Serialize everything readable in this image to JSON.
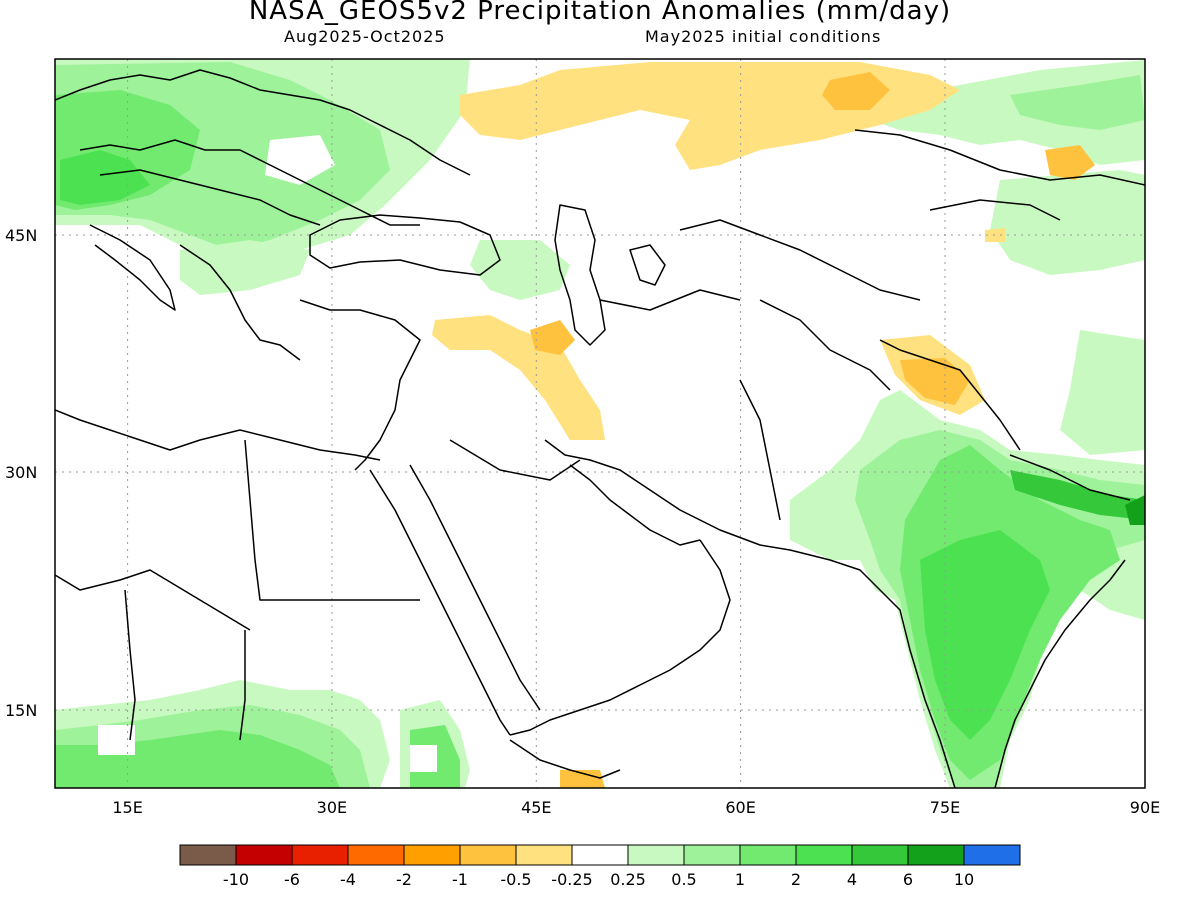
{
  "title": "NASA_GEOS5v2 Precipitation Anomalies (mm/day)",
  "subtitle_left": "Aug2025-Oct2025",
  "subtitle_right": "May2025 initial conditions",
  "map": {
    "lon_range": [
      10,
      90
    ],
    "lat_range": [
      10,
      55
    ],
    "lon_ticks": [
      {
        "value": 15,
        "label": "15E"
      },
      {
        "value": 30,
        "label": "30E"
      },
      {
        "value": 45,
        "label": "45E"
      },
      {
        "value": 60,
        "label": "60E"
      },
      {
        "value": 75,
        "label": "75E"
      },
      {
        "value": 90,
        "label": "90E"
      }
    ],
    "lat_ticks": [
      {
        "value": 45,
        "label": "45N"
      },
      {
        "value": 30,
        "label": "30N"
      },
      {
        "value": 15,
        "label": "15N"
      }
    ],
    "grid": "dotted"
  },
  "legend": {
    "colors": [
      "#7a5a48",
      "#c40000",
      "#e82000",
      "#ff6a00",
      "#ff9f00",
      "#ffc23f",
      "#ffe27f",
      "#ffffff",
      "#c8f9c0",
      "#9ef29a",
      "#72ea70",
      "#4ce150",
      "#35c83b",
      "#13a11b",
      "#1f6fe8"
    ],
    "labels": [
      "-10",
      "-6",
      "-4",
      "-2",
      "-1",
      "-0.5",
      "-0.25",
      "0.25",
      "0.5",
      "1",
      "2",
      "4",
      "6",
      "10"
    ]
  },
  "colors": {
    "land_lightgreen": "#c8f9c0",
    "land_green1": "#9ef29a",
    "land_green2": "#72ea70",
    "land_green3": "#4ce150",
    "land_green4": "#35c83b",
    "dry_light": "#ffe27f",
    "dry_mid": "#ffc23f"
  }
}
